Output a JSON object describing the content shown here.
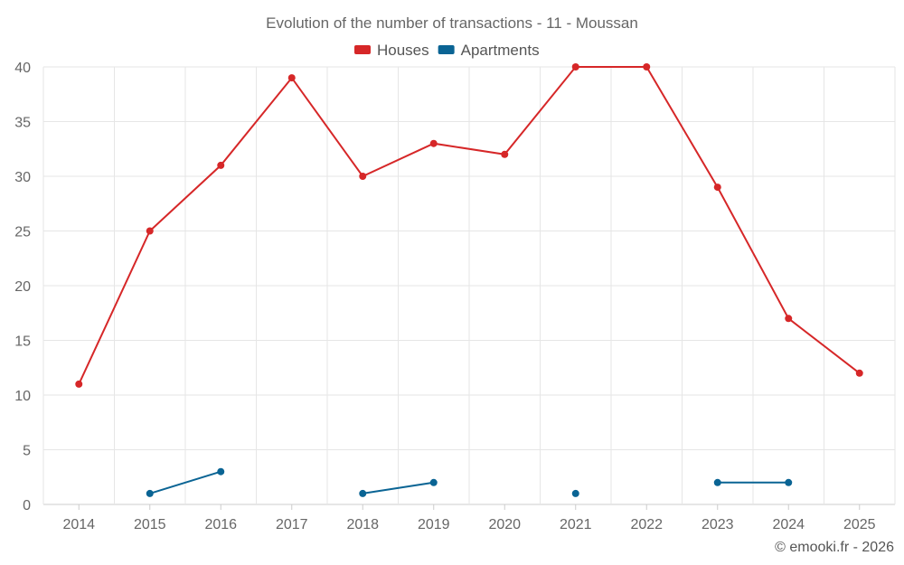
{
  "chart_data": {
    "type": "line",
    "title": "Evolution of the number of transactions - 11 - Moussan",
    "categories": [
      "2014",
      "2015",
      "2016",
      "2017",
      "2018",
      "2019",
      "2020",
      "2021",
      "2022",
      "2023",
      "2024",
      "2025"
    ],
    "ylim": [
      0,
      40
    ],
    "yticks": [
      0,
      5,
      10,
      15,
      20,
      25,
      30,
      35,
      40
    ],
    "grid": true,
    "legend_position": "top-center",
    "series": [
      {
        "name": "Houses",
        "color": "#d62728",
        "values": [
          11,
          25,
          31,
          39,
          30,
          33,
          32,
          40,
          40,
          29,
          17,
          12
        ]
      },
      {
        "name": "Apartments",
        "color": "#0a6494",
        "values": [
          null,
          1,
          3,
          null,
          1,
          2,
          null,
          1,
          null,
          2,
          2,
          null
        ]
      }
    ]
  },
  "credit": "© emooki.fr - 2026"
}
